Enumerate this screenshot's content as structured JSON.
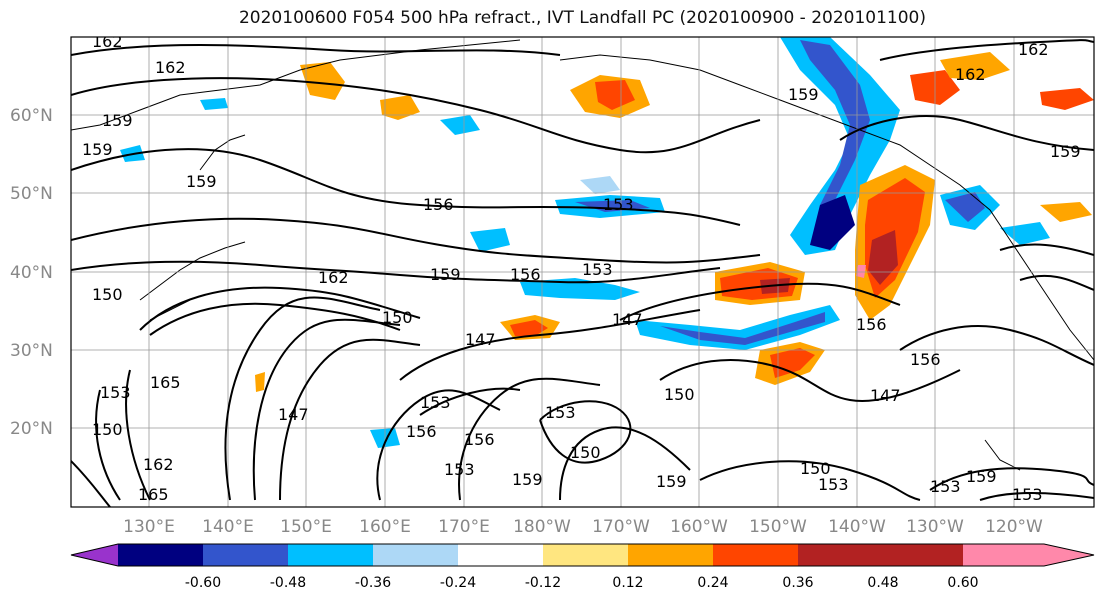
{
  "title": "2020100600 F054 500 hPa refract., IVT Landfall PC (2020100900 - 2020101100)",
  "lat_labels": [
    "60°N",
    "50°N",
    "40°N",
    "30°N",
    "20°N"
  ],
  "lon_labels": [
    "130°E",
    "140°E",
    "150°E",
    "160°E",
    "170°E",
    "180°W",
    "170°W",
    "160°W",
    "150°W",
    "140°W",
    "130°W",
    "120°W"
  ],
  "colorbar": {
    "colors": [
      "#9933cc",
      "#000080",
      "#3355cc",
      "#00bfff",
      "#add8f6",
      "#ffffff",
      "#ffe680",
      "#ffa500",
      "#ff4500",
      "#b22222",
      "#ff88aa"
    ],
    "tick_labels": [
      "-0.60",
      "-0.48",
      "-0.36",
      "-0.24",
      "-0.12",
      "0.12",
      "0.24",
      "0.36",
      "0.48",
      "0.60"
    ]
  },
  "contour_labels": [
    {
      "text": "162"
    },
    {
      "text": "162"
    },
    {
      "text": "159"
    },
    {
      "text": "159"
    },
    {
      "text": "159"
    },
    {
      "text": "156"
    },
    {
      "text": "153"
    },
    {
      "text": "159"
    },
    {
      "text": "156"
    },
    {
      "text": "153"
    },
    {
      "text": "162"
    },
    {
      "text": "150"
    },
    {
      "text": "147"
    },
    {
      "text": "147"
    },
    {
      "text": "150"
    },
    {
      "text": "165"
    },
    {
      "text": "153"
    },
    {
      "text": "150"
    },
    {
      "text": "162"
    },
    {
      "text": "165"
    },
    {
      "text": "147"
    },
    {
      "text": "153"
    },
    {
      "text": "156"
    },
    {
      "text": "156"
    },
    {
      "text": "153"
    },
    {
      "text": "153"
    },
    {
      "text": "159"
    },
    {
      "text": "150"
    },
    {
      "text": "150"
    },
    {
      "text": "159"
    },
    {
      "text": "150"
    },
    {
      "text": "153"
    },
    {
      "text": "156"
    },
    {
      "text": "156"
    },
    {
      "text": "147"
    },
    {
      "text": "159"
    },
    {
      "text": "162"
    },
    {
      "text": "162"
    },
    {
      "text": "159"
    },
    {
      "text": "159"
    },
    {
      "text": "153"
    },
    {
      "text": "153"
    }
  ]
}
